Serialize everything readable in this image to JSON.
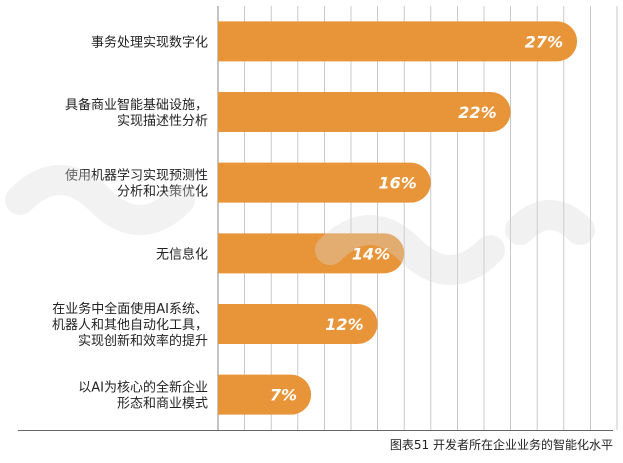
{
  "chart_data": {
    "type": "bar",
    "orientation": "horizontal",
    "categories": [
      [
        "事务处理实现数字化"
      ],
      [
        "具备商业智能基础设施，",
        "实现描述性分析"
      ],
      [
        "使用机器学习实现预测性",
        "分析和决策优化"
      ],
      [
        "无信息化"
      ],
      [
        "在业务中全面使用AI系统、",
        "机器人和其他自动化工具，",
        "实现创新和效率的提升"
      ],
      [
        "以AI为核心的全新企业",
        "形态和商业模式"
      ]
    ],
    "values": [
      27,
      22,
      16,
      14,
      12,
      7
    ],
    "value_labels": [
      "27%",
      "22%",
      "16%",
      "14%",
      "12%",
      "7%"
    ],
    "xlim": [
      0,
      30
    ],
    "grid": true,
    "bar_color": "#e8953a"
  },
  "caption": "图表51  开发者所在企业业务的智能化水平"
}
